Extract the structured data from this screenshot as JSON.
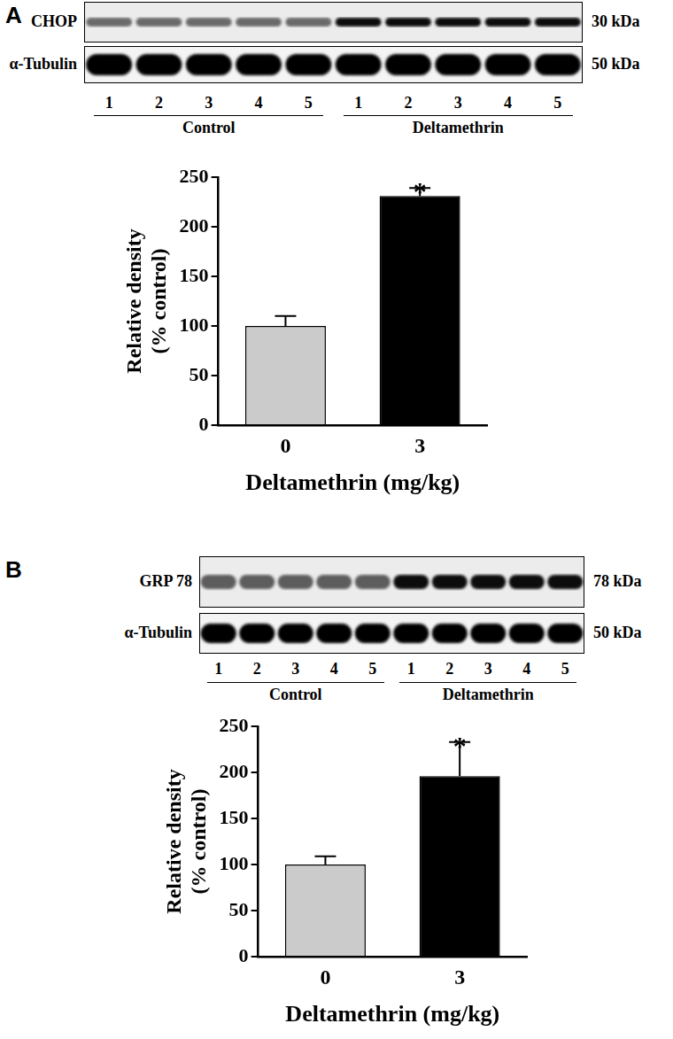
{
  "chart_data": [
    {
      "type": "bar",
      "categories": [
        "0",
        "3"
      ],
      "values": [
        100,
        231
      ],
      "errors": [
        10,
        8
      ],
      "colors": [
        "#cbcbcb",
        "#000000"
      ],
      "ylim": [
        0,
        250
      ],
      "yticks": [
        0,
        50,
        100,
        150,
        200,
        250
      ],
      "x_label": "Deltamethrin (mg/kg)",
      "y_label": [
        "Relative density",
        "(% control)"
      ],
      "grid": false,
      "annotations": [
        {
          "text": "*",
          "category": "3"
        }
      ]
    },
    {
      "type": "bar",
      "categories": [
        "0",
        "3"
      ],
      "values": [
        100,
        196
      ],
      "errors": [
        9,
        37
      ],
      "colors": [
        "#cbcbcb",
        "#000000"
      ],
      "ylim": [
        0,
        250
      ],
      "yticks": [
        0,
        50,
        100,
        150,
        200,
        250
      ],
      "x_label": "Deltamethrin (mg/kg)",
      "y_label": [
        "Relative density",
        "(% control)"
      ],
      "grid": false,
      "annotations": [
        {
          "text": "*",
          "category": "3"
        }
      ]
    }
  ],
  "blots": [
    {
      "panel_label": "A",
      "rows": [
        {
          "protein": "CHOP",
          "size": "30 kDa"
        },
        {
          "protein": "α-Tubulin",
          "size": "50 kDa"
        }
      ],
      "lanes": [
        1,
        2,
        3,
        4,
        5
      ],
      "groups": [
        "Control",
        "Deltamethrin"
      ]
    },
    {
      "panel_label": "B",
      "rows": [
        {
          "protein": "GRP 78",
          "size": "78 kDa"
        },
        {
          "protein": "α-Tubulin",
          "size": "50 kDa"
        }
      ],
      "lanes": [
        1,
        2,
        3,
        4,
        5
      ],
      "groups": [
        "Control",
        "Deltamethrin"
      ]
    }
  ]
}
